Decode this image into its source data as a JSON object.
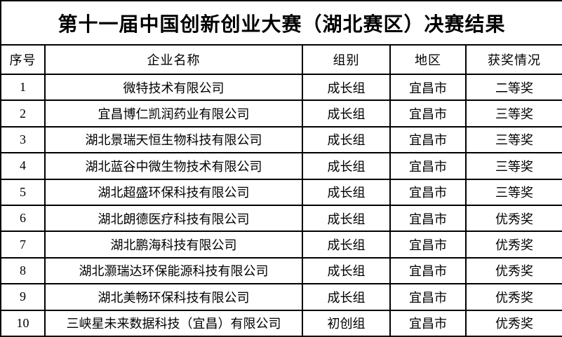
{
  "title": "第十一届中国创新创业大赛（湖北赛区）决赛结果",
  "colors": {
    "border": "#000000",
    "text": "#000000",
    "background": "#ffffff"
  },
  "table": {
    "headers": [
      "序号",
      "企业名称",
      "组别",
      "地区",
      "获奖情况"
    ],
    "rows": [
      [
        "1",
        "微特技术有限公司",
        "成长组",
        "宜昌市",
        "二等奖"
      ],
      [
        "2",
        "宜昌博仁凯润药业有限公司",
        "成长组",
        "宜昌市",
        "三等奖"
      ],
      [
        "3",
        "湖北景瑞天恒生物科技有限公司",
        "成长组",
        "宜昌市",
        "三等奖"
      ],
      [
        "4",
        "湖北蓝谷中微生物技术有限公司",
        "成长组",
        "宜昌市",
        "三等奖"
      ],
      [
        "5",
        "湖北超盛环保科技有限公司",
        "成长组",
        "宜昌市",
        "三等奖"
      ],
      [
        "6",
        "湖北朗德医疗科技有限公司",
        "成长组",
        "宜昌市",
        "优秀奖"
      ],
      [
        "7",
        "湖北鹏海科技有限公司",
        "成长组",
        "宜昌市",
        "优秀奖"
      ],
      [
        "8",
        "湖北灏瑞达环保能源科技有限公司",
        "成长组",
        "宜昌市",
        "优秀奖"
      ],
      [
        "9",
        "湖北美畅环保科技有限公司",
        "成长组",
        "宜昌市",
        "优秀奖"
      ],
      [
        "10",
        "三峡星未来数据科技（宜昌）有限公司",
        "初创组",
        "宜昌市",
        "优秀奖"
      ]
    ]
  }
}
